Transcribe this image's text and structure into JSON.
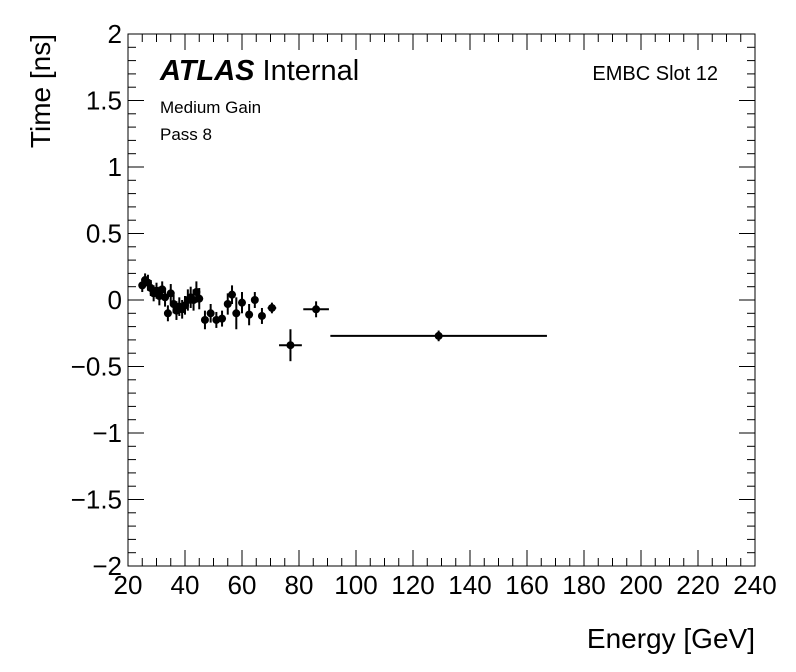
{
  "chart_data": {
    "type": "scatter",
    "title": "",
    "xlabel": "Energy [GeV]",
    "ylabel": "Time [ns]",
    "xlim": [
      20,
      240
    ],
    "ylim": [
      -2,
      2
    ],
    "x_ticks": [
      20,
      40,
      60,
      80,
      100,
      120,
      140,
      160,
      180,
      200,
      220,
      240
    ],
    "y_ticks": [
      -2,
      -1.5,
      -1,
      -0.5,
      0,
      0.5,
      1,
      1.5,
      2
    ],
    "y_tick_labels": [
      "−2",
      "−1.5",
      "−1",
      "−0.5",
      "0",
      "0.5",
      "1",
      "1.5",
      "2"
    ],
    "grid": false,
    "legend": "none",
    "marker_color": "#000000",
    "annotations": {
      "experiment": "ATLAS",
      "status": "Internal",
      "line1": "Medium Gain",
      "line2": "Pass 8",
      "region": "EMBC Slot 12"
    },
    "series": [
      {
        "points": [
          {
            "x": 25.0,
            "y": 0.11,
            "xerr": 0.6,
            "yerr": 0.05
          },
          {
            "x": 26.0,
            "y": 0.15,
            "xerr": 0.6,
            "yerr": 0.05
          },
          {
            "x": 27.0,
            "y": 0.13,
            "xerr": 0.6,
            "yerr": 0.06
          },
          {
            "x": 28.0,
            "y": 0.09,
            "xerr": 0.6,
            "yerr": 0.06
          },
          {
            "x": 29.0,
            "y": 0.05,
            "xerr": 0.6,
            "yerr": 0.06
          },
          {
            "x": 30.0,
            "y": 0.07,
            "xerr": 0.6,
            "yerr": 0.06
          },
          {
            "x": 31.0,
            "y": 0.03,
            "xerr": 0.6,
            "yerr": 0.07
          },
          {
            "x": 32.0,
            "y": 0.08,
            "xerr": 0.6,
            "yerr": 0.06
          },
          {
            "x": 33.0,
            "y": 0.02,
            "xerr": 0.6,
            "yerr": 0.07
          },
          {
            "x": 34.0,
            "y": -0.1,
            "xerr": 0.6,
            "yerr": 0.06
          },
          {
            "x": 35.0,
            "y": 0.05,
            "xerr": 0.6,
            "yerr": 0.07
          },
          {
            "x": 36.0,
            "y": -0.03,
            "xerr": 0.6,
            "yerr": 0.07
          },
          {
            "x": 37.0,
            "y": -0.08,
            "xerr": 0.6,
            "yerr": 0.07
          },
          {
            "x": 38.0,
            "y": -0.05,
            "xerr": 0.6,
            "yerr": 0.07
          },
          {
            "x": 39.0,
            "y": -0.07,
            "xerr": 0.6,
            "yerr": 0.07
          },
          {
            "x": 40.0,
            "y": -0.04,
            "xerr": 0.6,
            "yerr": 0.07
          },
          {
            "x": 41.0,
            "y": 0.0,
            "xerr": 0.6,
            "yerr": 0.08
          },
          {
            "x": 42.0,
            "y": 0.02,
            "xerr": 0.6,
            "yerr": 0.08
          },
          {
            "x": 43.0,
            "y": 0.0,
            "xerr": 0.6,
            "yerr": 0.08
          },
          {
            "x": 44.0,
            "y": 0.06,
            "xerr": 0.6,
            "yerr": 0.08
          },
          {
            "x": 45.0,
            "y": 0.01,
            "xerr": 0.6,
            "yerr": 0.08
          },
          {
            "x": 47.0,
            "y": -0.15,
            "xerr": 0.8,
            "yerr": 0.07
          },
          {
            "x": 49.0,
            "y": -0.1,
            "xerr": 0.8,
            "yerr": 0.07
          },
          {
            "x": 51.0,
            "y": -0.15,
            "xerr": 0.8,
            "yerr": 0.06
          },
          {
            "x": 53.0,
            "y": -0.14,
            "xerr": 0.8,
            "yerr": 0.06
          },
          {
            "x": 55.0,
            "y": -0.03,
            "xerr": 0.8,
            "yerr": 0.08
          },
          {
            "x": 56.5,
            "y": 0.04,
            "xerr": 0.8,
            "yerr": 0.07
          },
          {
            "x": 58.0,
            "y": -0.1,
            "xerr": 0.8,
            "yerr": 0.12
          },
          {
            "x": 60.0,
            "y": -0.02,
            "xerr": 1.0,
            "yerr": 0.08
          },
          {
            "x": 62.5,
            "y": -0.11,
            "xerr": 1.0,
            "yerr": 0.08
          },
          {
            "x": 64.5,
            "y": 0.0,
            "xerr": 1.0,
            "yerr": 0.06
          },
          {
            "x": 67.0,
            "y": -0.12,
            "xerr": 1.0,
            "yerr": 0.06
          },
          {
            "x": 70.5,
            "y": -0.06,
            "xerr": 1.5,
            "yerr": 0.04
          },
          {
            "x": 77.0,
            "y": -0.34,
            "xerr": 4.0,
            "yerr": 0.12
          },
          {
            "x": 86.0,
            "y": -0.07,
            "xerr": 4.5,
            "yerr": 0.06
          },
          {
            "x": 129.0,
            "y": -0.27,
            "xerr": 38.0,
            "yerr": 0.04
          }
        ]
      }
    ]
  }
}
